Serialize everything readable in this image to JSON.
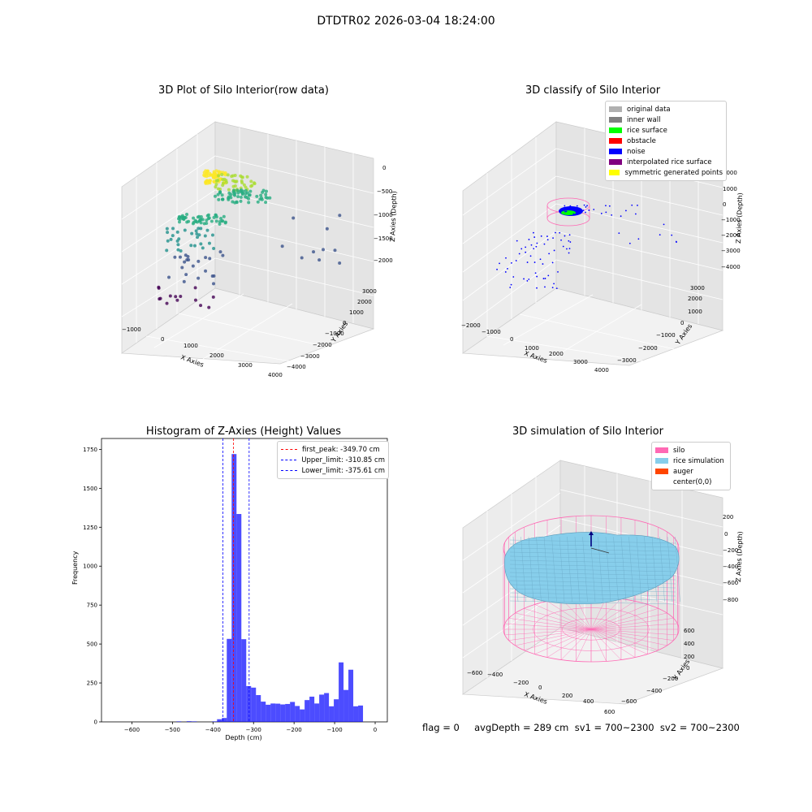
{
  "figure_title": "DTDTR02 2026-03-04 18:24:00",
  "status_line": "flag = 0     avgDepth = 289 cm  sv1 = 700~2300  sv2 = 700~2300",
  "chart_data": [
    {
      "type": "scatter",
      "title": "3D Plot of Silo Interior(row data)",
      "xlabel": "X Axies",
      "ylabel": "Y Axies",
      "zlabel": "Z Axies (Depth)",
      "x_ticks": [
        "−1000",
        "0",
        "1000",
        "2000",
        "3000",
        "4000"
      ],
      "y_ticks": [
        "−4000",
        "−3000",
        "−2000",
        "−1000",
        "0",
        "1000",
        "2000",
        "3000"
      ],
      "z_ticks": [
        "0",
        "−500",
        "−1000",
        "−1500",
        "−2000"
      ]
    },
    {
      "type": "scatter",
      "title": "3D classify of Silo Interior",
      "xlabel": "X Axies",
      "ylabel": "Y Axies",
      "zlabel": "Z Axies (Depth)",
      "x_ticks": [
        "−2000",
        "−1000",
        "0",
        "1000",
        "2000",
        "3000",
        "4000"
      ],
      "y_ticks": [
        "−3000",
        "−2000",
        "−1000",
        "0",
        "1000",
        "2000",
        "3000"
      ],
      "z_ticks": [
        "2000",
        "1000",
        "0",
        "−1000",
        "−2000",
        "−3000",
        "−4000"
      ],
      "legend": [
        {
          "label": "original data",
          "color": "#b0b0b0"
        },
        {
          "label": "inner wall",
          "color": "#808080"
        },
        {
          "label": "rice surface",
          "color": "#00ff00"
        },
        {
          "label": "obstacle",
          "color": "#ff0000"
        },
        {
          "label": "noise",
          "color": "#0000ff"
        },
        {
          "label": "interpolated rice surface",
          "color": "#800080"
        },
        {
          "label": "symmetric generated points",
          "color": "#ffff00"
        }
      ]
    },
    {
      "type": "bar",
      "title": "Histogram of Z-Axies (Height) Values",
      "xlabel": "Depth (cm)",
      "ylabel": "Frequency",
      "xlim": [
        -675,
        30
      ],
      "ylim": [
        0,
        1820
      ],
      "x_ticks": [
        -600,
        -500,
        -400,
        -300,
        -200,
        -100,
        0
      ],
      "y_ticks": [
        0,
        250,
        500,
        750,
        1000,
        1250,
        1500,
        1750
      ],
      "bar_color": "#0000ff",
      "bins": [
        {
          "x0": -490,
          "x1": -478,
          "v": 3
        },
        {
          "x0": -465,
          "x1": -453,
          "v": 4
        },
        {
          "x0": -452,
          "x1": -440,
          "v": 3
        },
        {
          "x0": -402,
          "x1": -390,
          "v": 3
        },
        {
          "x0": -390,
          "x1": -378,
          "v": 17
        },
        {
          "x0": -378,
          "x1": -366,
          "v": 25
        },
        {
          "x0": -366,
          "x1": -354,
          "v": 533
        },
        {
          "x0": -354,
          "x1": -342,
          "v": 1720
        },
        {
          "x0": -342,
          "x1": -330,
          "v": 1335
        },
        {
          "x0": -330,
          "x1": -318,
          "v": 531
        },
        {
          "x0": -318,
          "x1": -306,
          "v": 230
        },
        {
          "x0": -306,
          "x1": -294,
          "v": 220
        },
        {
          "x0": -294,
          "x1": -282,
          "v": 172
        },
        {
          "x0": -282,
          "x1": -270,
          "v": 130
        },
        {
          "x0": -270,
          "x1": -258,
          "v": 110
        },
        {
          "x0": -258,
          "x1": -246,
          "v": 118
        },
        {
          "x0": -246,
          "x1": -234,
          "v": 117
        },
        {
          "x0": -234,
          "x1": -222,
          "v": 112
        },
        {
          "x0": -222,
          "x1": -210,
          "v": 115
        },
        {
          "x0": -210,
          "x1": -198,
          "v": 128
        },
        {
          "x0": -198,
          "x1": -186,
          "v": 102
        },
        {
          "x0": -186,
          "x1": -174,
          "v": 80
        },
        {
          "x0": -174,
          "x1": -162,
          "v": 140
        },
        {
          "x0": -162,
          "x1": -150,
          "v": 162
        },
        {
          "x0": -150,
          "x1": -138,
          "v": 118
        },
        {
          "x0": -138,
          "x1": -126,
          "v": 175
        },
        {
          "x0": -126,
          "x1": -114,
          "v": 185
        },
        {
          "x0": -114,
          "x1": -102,
          "v": 100
        },
        {
          "x0": -102,
          "x1": -90,
          "v": 145
        },
        {
          "x0": -90,
          "x1": -78,
          "v": 382
        },
        {
          "x0": -78,
          "x1": -66,
          "v": 205
        },
        {
          "x0": -66,
          "x1": -54,
          "v": 335
        },
        {
          "x0": -54,
          "x1": -42,
          "v": 100
        },
        {
          "x0": -42,
          "x1": -30,
          "v": 105
        }
      ],
      "vlines": [
        {
          "label": "first_peak: -349.70 cm",
          "x": -349.7,
          "color": "#ff0000"
        },
        {
          "label": "Upper_limit: -310.85 cm",
          "x": -310.85,
          "color": "#0000ff"
        },
        {
          "label": "Lower_limit: -375.61 cm",
          "x": -375.61,
          "color": "#0000ff"
        }
      ]
    },
    {
      "type": "area",
      "title": "3D simulation of Silo Interior",
      "xlabel": "X Axies",
      "ylabel": "Y Axies",
      "zlabel": "Z Axies (Depth)",
      "x_ticks": [
        "−600",
        "−400",
        "−200",
        "0",
        "200",
        "400",
        "600"
      ],
      "y_ticks": [
        "−600",
        "−400",
        "−200",
        "0",
        "200",
        "400",
        "600"
      ],
      "z_ticks": [
        "200",
        "0",
        "−200",
        "−400",
        "−600",
        "−800"
      ],
      "legend": [
        {
          "label": "silo",
          "color": "#ff69b4"
        },
        {
          "label": "rice simulation",
          "color": "#87ceeb"
        },
        {
          "label": "auger",
          "color": "#ff4500"
        },
        {
          "label": "center(0,0)",
          "color": "#ffffff"
        }
      ]
    }
  ]
}
